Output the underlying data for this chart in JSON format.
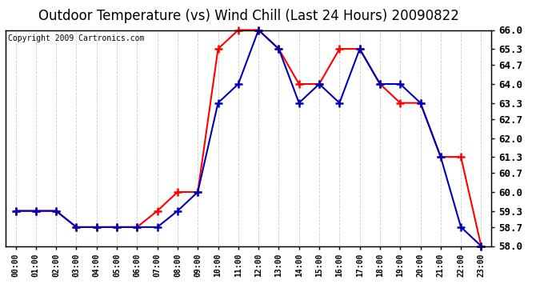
{
  "title": "Outdoor Temperature (vs) Wind Chill (Last 24 Hours) 20090822",
  "copyright": "Copyright 2009 Cartronics.com",
  "hours": [
    "00:00",
    "01:00",
    "02:00",
    "03:00",
    "04:00",
    "05:00",
    "06:00",
    "07:00",
    "08:00",
    "09:00",
    "10:00",
    "11:00",
    "12:00",
    "13:00",
    "14:00",
    "15:00",
    "16:00",
    "17:00",
    "18:00",
    "19:00",
    "20:00",
    "21:00",
    "22:00",
    "23:00"
  ],
  "temp": [
    59.3,
    59.3,
    59.3,
    58.7,
    58.7,
    58.7,
    58.7,
    59.3,
    60.0,
    60.0,
    65.3,
    66.0,
    66.0,
    65.3,
    64.0,
    64.0,
    65.3,
    65.3,
    64.0,
    63.3,
    63.3,
    61.3,
    61.3,
    58.0
  ],
  "windchill": [
    59.3,
    59.3,
    59.3,
    58.7,
    58.7,
    58.7,
    58.7,
    58.7,
    59.3,
    60.0,
    63.3,
    64.0,
    66.0,
    65.3,
    63.3,
    64.0,
    63.3,
    65.3,
    64.0,
    64.0,
    63.3,
    61.3,
    58.7,
    58.0
  ],
  "temp_color": "#ff0000",
  "windchill_color": "#0000bb",
  "ylim_min": 58.0,
  "ylim_max": 66.0,
  "yticks": [
    58.0,
    58.7,
    59.3,
    60.0,
    60.7,
    61.3,
    62.0,
    62.7,
    63.3,
    64.0,
    64.7,
    65.3,
    66.0
  ],
  "bg_color": "#ffffff",
  "grid_color": "#cccccc",
  "title_fontsize": 12,
  "copyright_fontsize": 7,
  "marker": "+",
  "marker_size": 7,
  "linewidth": 1.5
}
